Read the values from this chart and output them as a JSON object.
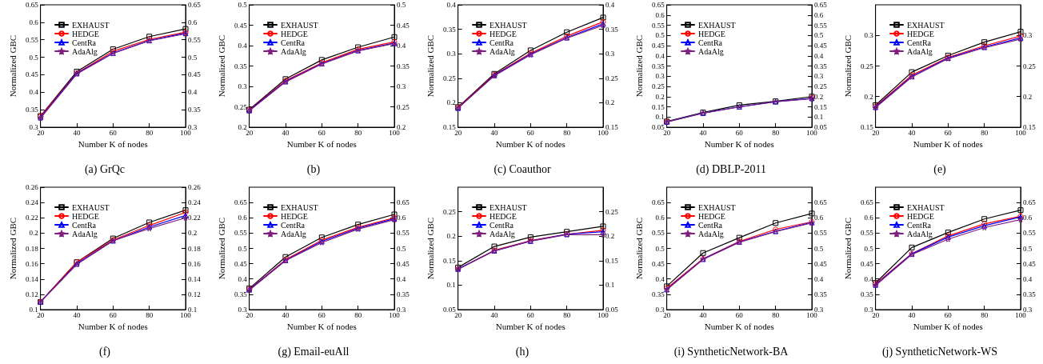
{
  "chart_data": [
    {
      "type": "line",
      "title": "(a) GrQc",
      "xlabel": "Number K of nodes",
      "ylabel": "Normalized GBC",
      "x": [
        20,
        40,
        60,
        80,
        100
      ],
      "xlim": [
        20,
        100
      ],
      "xticks": [
        20,
        40,
        60,
        80,
        100
      ],
      "ylim": [
        0.3,
        0.65
      ],
      "yticks": [
        0.3,
        0.35,
        0.4,
        0.45,
        0.5,
        0.55,
        0.6,
        0.65
      ],
      "y2lim": [
        0.3,
        0.65
      ],
      "y2ticks": [
        0.3,
        0.35,
        0.4,
        0.45,
        0.5,
        0.55,
        0.6,
        0.65
      ],
      "grid": false,
      "legend": "top left",
      "series": [
        {
          "name": "EXHAUST",
          "color": "#000000",
          "marker": "square",
          "values": [
            0.332,
            0.459,
            0.523,
            0.559,
            0.581
          ]
        },
        {
          "name": "HEDGE",
          "color": "#ff0000",
          "marker": "circle",
          "values": [
            0.331,
            0.455,
            0.517,
            0.551,
            0.572
          ]
        },
        {
          "name": "CentRa",
          "color": "#0000ff",
          "marker": "triangle",
          "values": [
            0.328,
            0.454,
            0.512,
            0.548,
            0.569
          ]
        },
        {
          "name": "AdaAlg",
          "color": "#7f1f7f",
          "marker": "star",
          "values": [
            0.326,
            0.452,
            0.511,
            0.547,
            0.567
          ]
        }
      ]
    },
    {
      "type": "line",
      "title": "(b)",
      "xlabel": "Number K of nodes",
      "ylabel": "Normalized GBC",
      "x": [
        20,
        40,
        60,
        80,
        100
      ],
      "xlim": [
        20,
        100
      ],
      "xticks": [
        20,
        40,
        60,
        80,
        100
      ],
      "ylim": [
        0.2,
        0.5
      ],
      "yticks": [
        0.2,
        0.25,
        0.3,
        0.35,
        0.4,
        0.45,
        0.5
      ],
      "y2lim": [
        0.2,
        0.5
      ],
      "y2ticks": [
        0.2,
        0.25,
        0.3,
        0.35,
        0.4,
        0.45,
        0.5
      ],
      "grid": false,
      "legend": "top left",
      "series": [
        {
          "name": "EXHAUST",
          "color": "#000000",
          "marker": "square",
          "values": [
            0.243,
            0.318,
            0.365,
            0.396,
            0.421
          ]
        },
        {
          "name": "HEDGE",
          "color": "#ff0000",
          "marker": "circle",
          "values": [
            0.242,
            0.314,
            0.358,
            0.391,
            0.409
          ]
        },
        {
          "name": "CentRa",
          "color": "#0000ff",
          "marker": "triangle",
          "values": [
            0.241,
            0.312,
            0.356,
            0.388,
            0.406
          ]
        },
        {
          "name": "AdaAlg",
          "color": "#7f1f7f",
          "marker": "star",
          "values": [
            0.24,
            0.311,
            0.355,
            0.387,
            0.405
          ]
        }
      ]
    },
    {
      "type": "line",
      "title": "(c) Coauthor",
      "xlabel": "Number K of nodes",
      "ylabel": "Normalized GBC",
      "x": [
        20,
        40,
        60,
        80,
        100
      ],
      "xlim": [
        20,
        100
      ],
      "xticks": [
        20,
        40,
        60,
        80,
        100
      ],
      "ylim": [
        0.15,
        0.4
      ],
      "yticks": [
        0.15,
        0.2,
        0.25,
        0.3,
        0.35,
        0.4
      ],
      "y2lim": [
        0.15,
        0.4
      ],
      "y2ticks": [
        0.15,
        0.2,
        0.25,
        0.3,
        0.35,
        0.4
      ],
      "grid": false,
      "legend": "top left",
      "series": [
        {
          "name": "EXHAUST",
          "color": "#000000",
          "marker": "square",
          "values": [
            0.191,
            0.259,
            0.307,
            0.344,
            0.374
          ]
        },
        {
          "name": "HEDGE",
          "color": "#ff0000",
          "marker": "circle",
          "values": [
            0.19,
            0.257,
            0.301,
            0.336,
            0.365
          ]
        },
        {
          "name": "CentRa",
          "color": "#0000ff",
          "marker": "triangle",
          "values": [
            0.189,
            0.256,
            0.299,
            0.333,
            0.361
          ]
        },
        {
          "name": "AdaAlg",
          "color": "#7f1f7f",
          "marker": "star",
          "values": [
            0.189,
            0.255,
            0.298,
            0.332,
            0.358
          ]
        }
      ]
    },
    {
      "type": "line",
      "title": "(d) DBLP-2011",
      "xlabel": "Number K of nodes",
      "ylabel": "Normalized GBC",
      "x": [
        20,
        40,
        60,
        80,
        100
      ],
      "xlim": [
        20,
        100
      ],
      "xticks": [
        20,
        40,
        60,
        80,
        100
      ],
      "ylim": [
        0.05,
        0.65
      ],
      "yticks": [
        0.05,
        0.1,
        0.15,
        0.2,
        0.25,
        0.3,
        0.35,
        0.4,
        0.45,
        0.5,
        0.55,
        0.6,
        0.65
      ],
      "y2lim": [
        0.05,
        0.65
      ],
      "y2ticks": [
        0.05,
        0.1,
        0.15,
        0.2,
        0.25,
        0.3,
        0.35,
        0.4,
        0.45,
        0.5,
        0.55,
        0.6,
        0.65
      ],
      "grid": false,
      "legend": "top left",
      "series": [
        {
          "name": "EXHAUST",
          "color": "#000000",
          "marker": "square",
          "values": [
            0.078,
            0.122,
            0.158,
            0.177,
            0.2
          ]
        },
        {
          "name": "HEDGE",
          "color": "#ff0000",
          "marker": "circle",
          "values": [
            0.077,
            null,
            null,
            null,
            0.195
          ]
        },
        {
          "name": "CentRa",
          "color": "#0000ff",
          "marker": "triangle",
          "values": [
            0.076,
            0.119,
            0.15,
            0.175,
            0.192
          ]
        },
        {
          "name": "AdaAlg",
          "color": "#7f1f7f",
          "marker": "star",
          "values": [
            0.076,
            0.119,
            0.149,
            0.175,
            0.19
          ]
        }
      ]
    },
    {
      "type": "line",
      "title": "(e)",
      "xlabel": "Number K of nodes",
      "ylabel": "Normalized GBC",
      "x": [
        20,
        40,
        60,
        80,
        100
      ],
      "xlim": [
        20,
        100
      ],
      "xticks": [
        20,
        40,
        60,
        80,
        100
      ],
      "ylim": [
        0.15,
        0.35
      ],
      "yticks": [
        0.15,
        0.2,
        0.25,
        0.3
      ],
      "y2lim": [
        0.15,
        0.35
      ],
      "y2ticks": [
        0.15,
        0.2,
        0.25,
        0.3
      ],
      "grid": false,
      "legend": "top left",
      "series": [
        {
          "name": "EXHAUST",
          "color": "#000000",
          "marker": "square",
          "values": [
            0.186,
            0.24,
            0.267,
            0.289,
            0.306
          ]
        },
        {
          "name": "HEDGE",
          "color": "#ff0000",
          "marker": "circle",
          "values": [
            0.184,
            0.235,
            0.264,
            0.283,
            0.299
          ]
        },
        {
          "name": "CentRa",
          "color": "#0000ff",
          "marker": "triangle",
          "values": [
            0.183,
            0.233,
            0.263,
            0.281,
            0.296
          ]
        },
        {
          "name": "AdaAlg",
          "color": "#7f1f7f",
          "marker": "star",
          "values": [
            0.182,
            0.232,
            0.262,
            0.28,
            0.294
          ]
        }
      ]
    },
    {
      "type": "line",
      "title": "(f)",
      "xlabel": "Number K of nodes",
      "ylabel": "Normalized GBC",
      "x": [
        20,
        40,
        60,
        80,
        100
      ],
      "xlim": [
        20,
        100
      ],
      "xticks": [
        20,
        40,
        60,
        80,
        100
      ],
      "ylim": [
        0.1,
        0.26
      ],
      "yticks": [
        0.1,
        0.12,
        0.14,
        0.16,
        0.18,
        0.2,
        0.22,
        0.24,
        0.26
      ],
      "y2lim": [
        0.1,
        0.26
      ],
      "y2ticks": [
        0.1,
        0.12,
        0.14,
        0.16,
        0.18,
        0.2,
        0.22,
        0.24,
        0.26
      ],
      "grid": false,
      "legend": "top left",
      "series": [
        {
          "name": "EXHAUST",
          "color": "#000000",
          "marker": "square",
          "values": [
            0.11,
            0.162,
            0.193,
            0.214,
            0.23
          ]
        },
        {
          "name": "HEDGE",
          "color": "#ff0000",
          "marker": "circle",
          "values": [
            0.11,
            0.162,
            0.191,
            0.21,
            0.227
          ]
        },
        {
          "name": "CentRa",
          "color": "#0000ff",
          "marker": "triangle",
          "values": [
            0.11,
            0.16,
            0.19,
            0.208,
            0.223
          ]
        },
        {
          "name": "AdaAlg",
          "color": "#7f1f7f",
          "marker": "star",
          "values": [
            0.11,
            0.159,
            0.19,
            0.206,
            0.22
          ]
        }
      ]
    },
    {
      "type": "line",
      "title": "(g) Email-euAll",
      "xlabel": "Number K of nodes",
      "ylabel": "Normalized GBC",
      "x": [
        20,
        40,
        60,
        80,
        100
      ],
      "xlim": [
        20,
        100
      ],
      "xticks": [
        20,
        40,
        60,
        80,
        100
      ],
      "ylim": [
        0.3,
        0.7
      ],
      "yticks": [
        0.3,
        0.35,
        0.4,
        0.45,
        0.5,
        0.55,
        0.6,
        0.65
      ],
      "y2lim": [
        0.3,
        0.7
      ],
      "y2ticks": [
        0.3,
        0.35,
        0.4,
        0.45,
        0.5,
        0.55,
        0.6,
        0.65
      ],
      "grid": false,
      "legend": "top left",
      "series": [
        {
          "name": "EXHAUST",
          "color": "#000000",
          "marker": "square",
          "values": [
            0.369,
            0.472,
            0.536,
            0.578,
            0.611
          ]
        },
        {
          "name": "HEDGE",
          "color": "#ff0000",
          "marker": "circle",
          "values": [
            0.366,
            0.463,
            0.527,
            0.569,
            0.6
          ]
        },
        {
          "name": "CentRa",
          "color": "#0000ff",
          "marker": "triangle",
          "values": [
            0.365,
            0.461,
            0.523,
            0.566,
            0.597
          ]
        },
        {
          "name": "AdaAlg",
          "color": "#7f1f7f",
          "marker": "star",
          "values": [
            0.363,
            0.46,
            0.519,
            0.563,
            0.594
          ]
        }
      ]
    },
    {
      "type": "line",
      "title": "(h)",
      "xlabel": "Number K of nodes",
      "ylabel": "Normalized GBC",
      "x": [
        20,
        40,
        60,
        80,
        100
      ],
      "xlim": [
        20,
        100
      ],
      "xticks": [
        20,
        40,
        60,
        80,
        100
      ],
      "ylim": [
        0.05,
        0.3
      ],
      "yticks": [
        0.05,
        0.1,
        0.15,
        0.2,
        0.25
      ],
      "y2lim": [
        0.05,
        0.3
      ],
      "y2ticks": [
        0.05,
        0.1,
        0.15,
        0.2,
        0.25
      ],
      "grid": false,
      "legend": "top left",
      "series": [
        {
          "name": "EXHAUST",
          "color": "#000000",
          "marker": "square",
          "values": [
            0.136,
            0.179,
            0.198,
            0.209,
            0.22
          ]
        },
        {
          "name": "HEDGE",
          "color": "#ff0000",
          "marker": "circle",
          "values": [
            0.133,
            0.171,
            0.191,
            0.204,
            0.212
          ]
        },
        {
          "name": "CentRa",
          "color": "#0000ff",
          "marker": "triangle",
          "values": [
            0.133,
            0.17,
            0.19,
            0.204,
            0.209
          ]
        },
        {
          "name": "AdaAlg",
          "color": "#7f1f7f",
          "marker": "star",
          "values": [
            0.132,
            0.17,
            0.19,
            0.203,
            0.203
          ]
        }
      ]
    },
    {
      "type": "line",
      "title": "(i) SyntheticNetwork-BA",
      "xlabel": "Number K of nodes",
      "ylabel": "Normalized GBC",
      "x": [
        20,
        40,
        60,
        80,
        100
      ],
      "xlim": [
        20,
        100
      ],
      "xticks": [
        20,
        40,
        60,
        80,
        100
      ],
      "ylim": [
        0.3,
        0.7
      ],
      "yticks": [
        0.3,
        0.35,
        0.4,
        0.45,
        0.5,
        0.55,
        0.6,
        0.65
      ],
      "y2lim": [
        0.3,
        0.7
      ],
      "y2ticks": [
        0.3,
        0.35,
        0.4,
        0.45,
        0.5,
        0.55,
        0.6,
        0.65
      ],
      "grid": false,
      "legend": "top left",
      "series": [
        {
          "name": "EXHAUST",
          "color": "#000000",
          "marker": "square",
          "values": [
            0.376,
            0.485,
            0.535,
            0.583,
            0.614
          ]
        },
        {
          "name": "HEDGE",
          "color": "#ff0000",
          "marker": "circle",
          "values": [
            0.37,
            0.466,
            0.523,
            0.562,
            0.587
          ]
        },
        {
          "name": "CentRa",
          "color": "#0000ff",
          "marker": "triangle",
          "values": [
            0.366,
            0.465,
            0.521,
            0.556,
            0.585
          ]
        },
        {
          "name": "AdaAlg",
          "color": "#7f1f7f",
          "marker": "star",
          "values": [
            0.365,
            0.464,
            0.52,
            0.555,
            0.583
          ]
        }
      ]
    },
    {
      "type": "line",
      "title": "(j) SyntheticNetwork-WS",
      "xlabel": "Number K of nodes",
      "ylabel": "Normalized GBC",
      "x": [
        20,
        40,
        60,
        80,
        100
      ],
      "xlim": [
        20,
        100
      ],
      "xticks": [
        20,
        40,
        60,
        80,
        100
      ],
      "ylim": [
        0.3,
        0.7
      ],
      "yticks": [
        0.3,
        0.35,
        0.4,
        0.45,
        0.5,
        0.55,
        0.6,
        0.65
      ],
      "y2lim": [
        0.3,
        0.7
      ],
      "y2ticks": [
        0.3,
        0.35,
        0.4,
        0.45,
        0.5,
        0.55,
        0.6,
        0.65
      ],
      "grid": false,
      "legend": "top left",
      "series": [
        {
          "name": "EXHAUST",
          "color": "#000000",
          "marker": "square",
          "values": [
            0.387,
            0.503,
            0.552,
            0.596,
            0.625
          ]
        },
        {
          "name": "HEDGE",
          "color": "#ff0000",
          "marker": "circle",
          "values": [
            0.384,
            0.483,
            0.541,
            0.58,
            0.605
          ]
        },
        {
          "name": "CentRa",
          "color": "#0000ff",
          "marker": "triangle",
          "values": [
            0.381,
            0.482,
            0.537,
            0.574,
            0.603
          ]
        },
        {
          "name": "AdaAlg",
          "color": "#7f1f7f",
          "marker": "star",
          "values": [
            0.379,
            0.48,
            0.53,
            0.568,
            0.594
          ]
        }
      ]
    }
  ]
}
